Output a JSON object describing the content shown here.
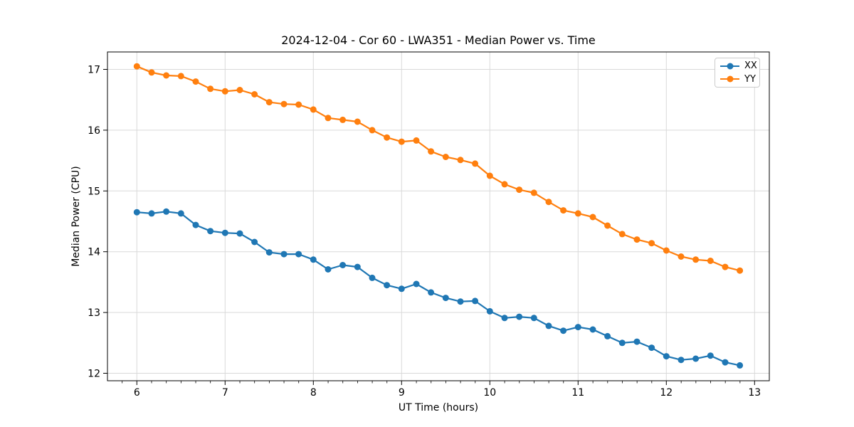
{
  "chart_data": {
    "type": "line",
    "title": "2024-12-04 - Cor 60 - LWA351 - Median Power vs. Time",
    "xlabel": "UT Time (hours)",
    "ylabel": "Median Power (CPU)",
    "xlim": [
      5.667,
      13.167
    ],
    "ylim": [
      11.877,
      17.287
    ],
    "x_ticks": [
      6,
      7,
      8,
      9,
      10,
      11,
      12,
      13
    ],
    "y_ticks": [
      12,
      13,
      14,
      15,
      16,
      17
    ],
    "x_minor_tick_step": 0.1667,
    "grid": "major",
    "grid_color": "#d9d9d9",
    "legend_position": "upper right",
    "x": [
      6.0,
      6.167,
      6.333,
      6.5,
      6.667,
      6.833,
      7.0,
      7.167,
      7.333,
      7.5,
      7.667,
      7.833,
      8.0,
      8.167,
      8.333,
      8.5,
      8.667,
      8.833,
      9.0,
      9.167,
      9.333,
      9.5,
      9.667,
      9.833,
      10.0,
      10.167,
      10.333,
      10.5,
      10.667,
      10.833,
      11.0,
      11.167,
      11.333,
      11.5,
      11.667,
      11.833,
      12.0,
      12.167,
      12.333,
      12.5,
      12.667,
      12.833
    ],
    "series": [
      {
        "name": "XX",
        "color": "#1f77b4",
        "values": [
          14.65,
          14.63,
          14.66,
          14.63,
          14.44,
          14.34,
          14.31,
          14.3,
          14.16,
          13.99,
          13.96,
          13.96,
          13.87,
          13.71,
          13.78,
          13.75,
          13.57,
          13.45,
          13.39,
          13.47,
          13.33,
          13.24,
          13.18,
          13.19,
          13.02,
          12.91,
          12.93,
          12.91,
          12.78,
          12.7,
          12.76,
          12.72,
          12.61,
          12.5,
          12.52,
          12.42,
          12.28,
          12.22,
          12.24,
          12.29,
          12.18,
          12.13
        ]
      },
      {
        "name": "YY",
        "color": "#ff7f0e",
        "values": [
          17.05,
          16.95,
          16.9,
          16.89,
          16.8,
          16.68,
          16.64,
          16.66,
          16.59,
          16.46,
          16.43,
          16.42,
          16.34,
          16.2,
          16.17,
          16.14,
          16.0,
          15.88,
          15.81,
          15.83,
          15.65,
          15.56,
          15.51,
          15.45,
          15.25,
          15.11,
          15.02,
          14.97,
          14.82,
          14.68,
          14.63,
          14.57,
          14.43,
          14.29,
          14.2,
          14.14,
          14.02,
          13.92,
          13.87,
          13.85,
          13.75,
          13.69
        ]
      }
    ]
  }
}
